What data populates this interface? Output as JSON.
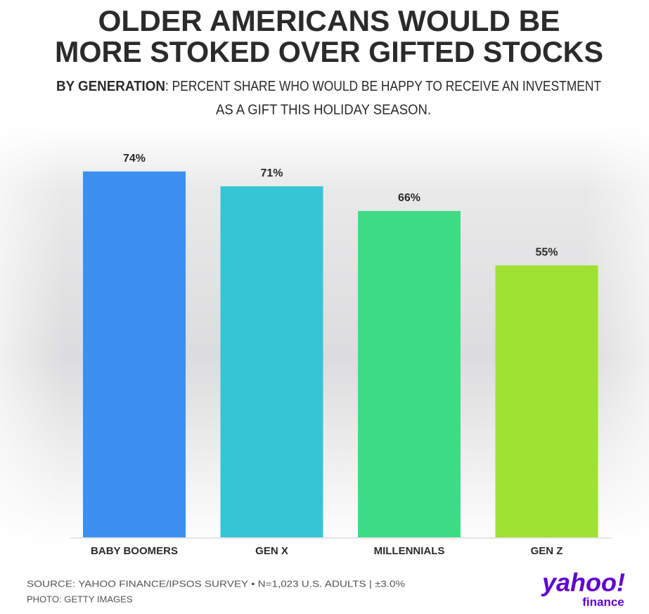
{
  "chart_data": {
    "type": "bar",
    "title": [
      "OLDER AMERICANS WOULD BE",
      "MORE STOKED OVER GIFTED STOCKS"
    ],
    "subtitle": [
      "BY GENERATION",
      ": PERCENT SHARE WHO WOULD BE HAPPY TO RECEIVE AN INVESTMENT",
      "AS A GIFT THIS HOLIDAY SEASON."
    ],
    "categories": [
      "BABY BOOMERS",
      "GEN X",
      "MILLENNIALS",
      "GEN Z"
    ],
    "values": [
      74,
      71,
      66,
      55
    ],
    "value_labels": [
      "74%",
      "71%",
      "66%",
      "55%"
    ],
    "colors": [
      "#3b90f2",
      "#36c5d5",
      "#3fdc86",
      "#9fe232"
    ],
    "source": [
      "SOURCE: YAHOO FINANCE/IPSOS SURVEY • N=1,023 U.S. ADULTS | ±3.0%",
      "PHOTO: GETTY IMAGES"
    ],
    "logo": [
      "yahoo!",
      "finance"
    ]
  }
}
